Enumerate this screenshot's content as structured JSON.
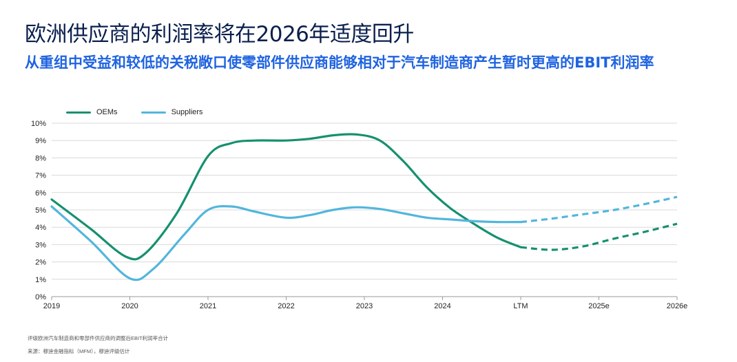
{
  "title": "欧洲供应商的利润率将在2026年适度回升",
  "subtitle": "从重组中受益和较低的关税敞口使零部件供应商能够相对于汽车制造商产生暂时更高的EBIT利润率",
  "footnotes": {
    "note": "评级欧洲汽车制造商和零部件供应商的调整后EBIT利润率合计",
    "source": "来源：穆迪金融指标（MFM），穆迪评级估计"
  },
  "colors": {
    "oems": "#16906f",
    "suppliers": "#52b6dc"
  },
  "chart_data": {
    "type": "line",
    "title": "",
    "xlabel": "",
    "ylabel": "",
    "categories": [
      "2019",
      "2020",
      "2021",
      "2022",
      "2023",
      "2024",
      "LTM",
      "2025e",
      "2026e"
    ],
    "ylim": [
      0,
      10
    ],
    "yticks": [
      "0%",
      "1%",
      "2%",
      "3%",
      "4%",
      "5%",
      "6%",
      "7%",
      "8%",
      "9%",
      "10%"
    ],
    "grid": true,
    "legend_position": "top-left",
    "dashed_from": "LTM",
    "series": [
      {
        "name": "OEMs",
        "x": [
          0,
          0.5,
          0.95,
          1.2,
          1.6,
          2.0,
          2.3,
          2.6,
          3.0,
          3.3,
          3.6,
          3.9,
          4.2,
          4.5,
          4.8,
          5.1,
          5.4,
          5.7,
          6.0,
          6.4,
          6.8,
          7.2,
          7.6,
          8.0
        ],
        "values": [
          5.6,
          3.9,
          2.3,
          2.5,
          4.8,
          8.1,
          8.85,
          9.0,
          9.0,
          9.1,
          9.3,
          9.35,
          9.0,
          7.8,
          6.3,
          5.1,
          4.2,
          3.4,
          2.85,
          2.7,
          2.9,
          3.35,
          3.75,
          4.2
        ]
      },
      {
        "name": "Suppliers",
        "x": [
          0,
          0.5,
          1.0,
          1.3,
          1.7,
          2.0,
          2.3,
          2.6,
          3.0,
          3.3,
          3.6,
          3.9,
          4.2,
          4.5,
          4.8,
          5.1,
          5.4,
          5.7,
          6.0,
          6.4,
          6.8,
          7.2,
          7.6,
          8.0
        ],
        "values": [
          5.2,
          3.2,
          1.05,
          1.6,
          3.6,
          5.0,
          5.2,
          4.9,
          4.55,
          4.7,
          5.0,
          5.15,
          5.05,
          4.8,
          4.55,
          4.45,
          4.35,
          4.3,
          4.3,
          4.5,
          4.75,
          5.0,
          5.35,
          5.75
        ]
      }
    ]
  }
}
